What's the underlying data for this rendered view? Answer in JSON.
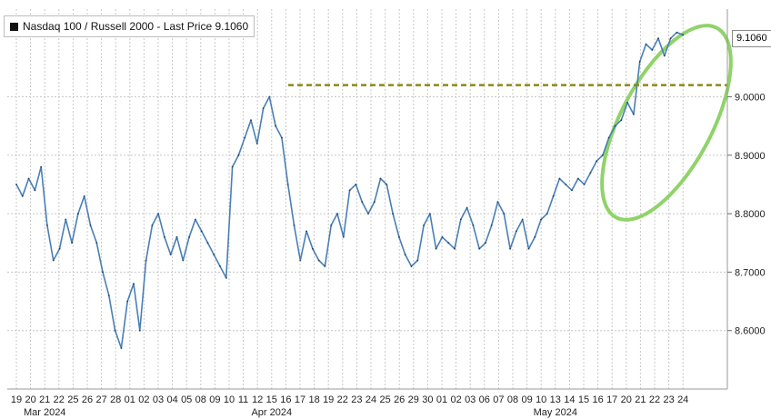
{
  "legend": {
    "label": "Nasdaq 100 / Russell 2000 - Last Price 9.1060"
  },
  "last_price_tag": "9.1060",
  "colors": {
    "line": "#4a7fb5",
    "grid": "#c8c8c8",
    "resistance": "#8a8a14",
    "highlight": "#8fd36a"
  },
  "chart_data": {
    "type": "line",
    "title": "",
    "xlabel": "",
    "ylabel": "",
    "ylim": [
      8.5,
      9.15
    ],
    "y_ticks": [
      "8.6000",
      "8.7000",
      "8.8000",
      "8.9000",
      "9.0000"
    ],
    "y_tick_values": [
      8.6,
      8.7,
      8.8,
      8.9,
      9.0
    ],
    "x_ticks": [
      "19",
      "20",
      "21",
      "22",
      "25",
      "26",
      "27",
      "28",
      "01",
      "02",
      "03",
      "04",
      "05",
      "08",
      "09",
      "10",
      "11",
      "12",
      "15",
      "16",
      "17",
      "18",
      "19",
      "22",
      "23",
      "24",
      "25",
      "26",
      "29",
      "30",
      "01",
      "02",
      "03",
      "06",
      "07",
      "08",
      "09",
      "10",
      "13",
      "14",
      "15",
      "16",
      "17",
      "20",
      "21",
      "22",
      "23",
      "24"
    ],
    "month_labels": [
      {
        "text": "Mar 2024",
        "at_tick": 2
      },
      {
        "text": "Apr 2024",
        "at_tick": 18
      },
      {
        "text": "May 2024",
        "at_tick": 38
      }
    ],
    "series": [
      {
        "values": [
          [
            0,
            8.85
          ],
          [
            0.5,
            8.83
          ],
          [
            1,
            8.86
          ],
          [
            1.5,
            8.84
          ],
          [
            2,
            8.88
          ],
          [
            2.5,
            8.78
          ],
          [
            3,
            8.72
          ],
          [
            3.5,
            8.74
          ],
          [
            4,
            8.79
          ],
          [
            4.5,
            8.75
          ],
          [
            5,
            8.8
          ],
          [
            5.5,
            8.83
          ],
          [
            6,
            8.78
          ],
          [
            6.5,
            8.75
          ],
          [
            7,
            8.7
          ],
          [
            7.5,
            8.66
          ],
          [
            8,
            8.6
          ],
          [
            8.5,
            8.57
          ],
          [
            9,
            8.65
          ],
          [
            9.5,
            8.68
          ],
          [
            10,
            8.6
          ],
          [
            10.5,
            8.72
          ],
          [
            11,
            8.78
          ],
          [
            11.5,
            8.8
          ],
          [
            12,
            8.76
          ],
          [
            12.5,
            8.73
          ],
          [
            13,
            8.76
          ],
          [
            13.5,
            8.72
          ],
          [
            14,
            8.76
          ],
          [
            14.5,
            8.79
          ],
          [
            15,
            8.77
          ],
          [
            15.5,
            8.75
          ],
          [
            16,
            8.73
          ],
          [
            16.5,
            8.71
          ],
          [
            17,
            8.69
          ],
          [
            17.5,
            8.88
          ],
          [
            18,
            8.9
          ],
          [
            18.5,
            8.93
          ],
          [
            19,
            8.96
          ],
          [
            19.5,
            8.92
          ],
          [
            20,
            8.98
          ],
          [
            20.5,
            9.0
          ],
          [
            21,
            8.95
          ],
          [
            21.5,
            8.93
          ],
          [
            22,
            8.85
          ],
          [
            22.5,
            8.78
          ],
          [
            23,
            8.72
          ],
          [
            23.5,
            8.77
          ],
          [
            24,
            8.74
          ],
          [
            24.5,
            8.72
          ],
          [
            25,
            8.71
          ],
          [
            25.5,
            8.78
          ],
          [
            26,
            8.8
          ],
          [
            26.5,
            8.76
          ],
          [
            27,
            8.84
          ],
          [
            27.5,
            8.85
          ],
          [
            28,
            8.82
          ],
          [
            28.5,
            8.8
          ],
          [
            29,
            8.82
          ],
          [
            29.5,
            8.86
          ],
          [
            30,
            8.85
          ],
          [
            30.5,
            8.8
          ],
          [
            31,
            8.76
          ],
          [
            31.5,
            8.73
          ],
          [
            32,
            8.71
          ],
          [
            32.5,
            8.72
          ],
          [
            33,
            8.78
          ],
          [
            33.5,
            8.8
          ],
          [
            34,
            8.74
          ],
          [
            34.5,
            8.76
          ],
          [
            35,
            8.75
          ],
          [
            35.5,
            8.74
          ],
          [
            36,
            8.79
          ],
          [
            36.5,
            8.81
          ],
          [
            37,
            8.78
          ],
          [
            37.5,
            8.74
          ],
          [
            38,
            8.75
          ],
          [
            38.5,
            8.78
          ],
          [
            39,
            8.82
          ],
          [
            39.5,
            8.8
          ],
          [
            40,
            8.74
          ],
          [
            40.5,
            8.77
          ],
          [
            41,
            8.79
          ],
          [
            41.5,
            8.74
          ],
          [
            42,
            8.76
          ],
          [
            42.5,
            8.79
          ],
          [
            43,
            8.8
          ],
          [
            43.5,
            8.83
          ],
          [
            44,
            8.86
          ],
          [
            44.5,
            8.85
          ],
          [
            45,
            8.84
          ],
          [
            45.5,
            8.86
          ],
          [
            46,
            8.85
          ],
          [
            46.5,
            8.87
          ],
          [
            47,
            8.89
          ],
          [
            47.5,
            8.9
          ],
          [
            48,
            8.93
          ],
          [
            48.5,
            8.95
          ],
          [
            49,
            8.96
          ],
          [
            49.5,
            8.99
          ],
          [
            50,
            8.97
          ],
          [
            50.5,
            9.06
          ],
          [
            51,
            9.09
          ],
          [
            51.5,
            9.08
          ],
          [
            52,
            9.1
          ],
          [
            52.5,
            9.07
          ],
          [
            53,
            9.1
          ],
          [
            53.5,
            9.11
          ],
          [
            54,
            9.106
          ]
        ]
      }
    ],
    "resistance_level": 9.02,
    "grid": true
  }
}
